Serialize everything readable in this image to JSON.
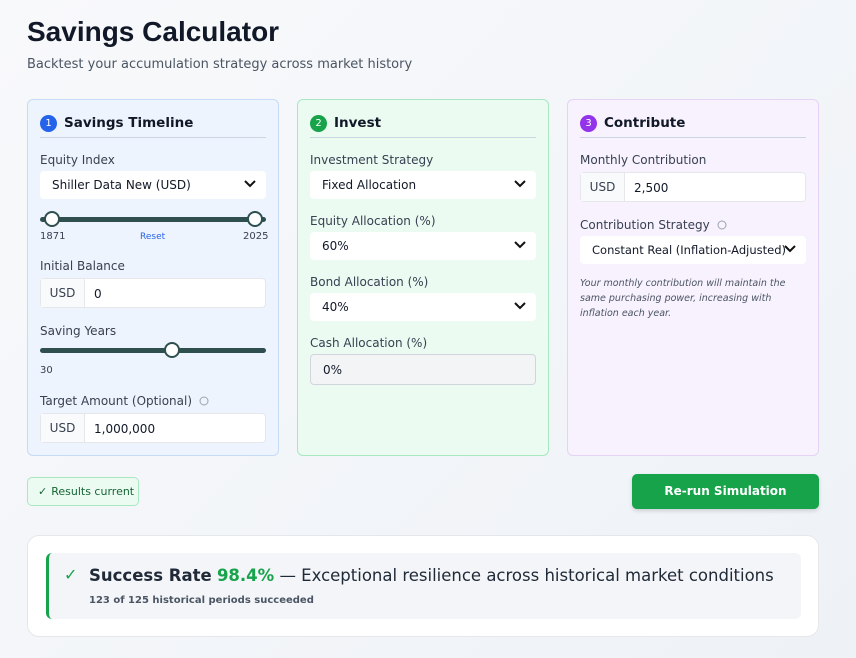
{
  "header": {
    "title": "Savings Calculator",
    "subtitle": "Backtest your accumulation strategy across market history"
  },
  "panels": [
    {
      "step": "1",
      "title": "Savings Timeline",
      "equity_index_label": "Equity Index",
      "equity_index": "Shiller Data New (USD)",
      "range_start": "1871",
      "reset": "Reset",
      "range_end": "2025",
      "initial_balance_label": "Initial Balance",
      "initial_balance_unit": "USD",
      "initial_balance": "0",
      "saving_years_label": "Saving Years",
      "saving_years": "30",
      "target_label": "Target Amount (Optional)",
      "target_unit": "USD",
      "target": "1,000,000"
    },
    {
      "step": "2",
      "title": "Invest",
      "strategy_label": "Investment Strategy",
      "strategy": "Fixed Allocation",
      "equity_label": "Equity Allocation (%)",
      "equity": "60%",
      "bond_label": "Bond Allocation (%)",
      "bond": "40%",
      "cash_label": "Cash Allocation (%)",
      "cash": "0%"
    },
    {
      "step": "3",
      "title": "Contribute",
      "monthly_label": "Monthly Contribution",
      "monthly_unit": "USD",
      "monthly": "2,500",
      "strategy_label": "Contribution Strategy",
      "strategy": "Constant Real (Inflation-Adjusted)",
      "note": "Your monthly contribution will maintain the same purchasing power, increasing with inflation each year."
    }
  ],
  "status": "Results current",
  "button": "Re-run Simulation",
  "result": {
    "label": "Success Rate",
    "rate": "98.4%",
    "description": "— Exceptional resilience across historical market conditions",
    "detail": "123 of 125 historical periods succeeded"
  }
}
